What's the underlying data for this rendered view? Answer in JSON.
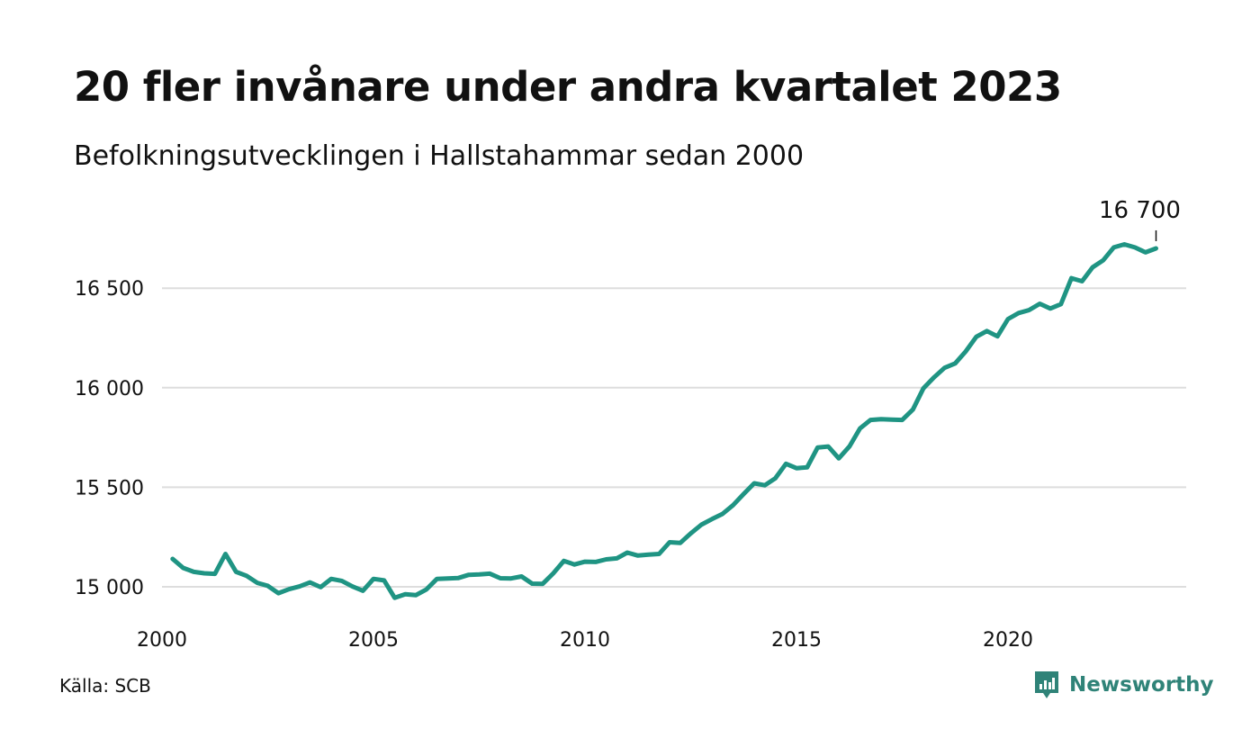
{
  "header": {
    "title": "20 fler invånare under andra kvartalet 2023",
    "subtitle": "Befolkningsutvecklingen i Hallstahammar sedan 2000"
  },
  "footer": {
    "source": "Källa: SCB",
    "brand": "Newsworthy",
    "brand_icon": "bar-chart-speech-bubble-icon"
  },
  "colors": {
    "line": "#1f9483",
    "grid": "#dddddd",
    "brand": "#2f8378"
  },
  "chart_data": {
    "type": "line",
    "title": "20 fler invånare under andra kvartalet 2023",
    "subtitle": "Befolkningsutvecklingen i Hallstahammar sedan 2000",
    "xlabel": "",
    "ylabel": "",
    "xlim": [
      2000,
      2024
    ],
    "ylim": [
      15000,
      16800
    ],
    "grid": true,
    "x_ticks": [
      2000,
      2005,
      2010,
      2015,
      2020
    ],
    "x_tick_labels": [
      "2000",
      "2005",
      "2010",
      "2015",
      "2020"
    ],
    "y_ticks": [
      15000,
      15500,
      16000,
      16500
    ],
    "y_tick_labels": [
      "15 000",
      "15 500",
      "16 000",
      "16 500"
    ],
    "end_label": "16 700",
    "series": [
      {
        "x": [
          2000.25,
          2000.5,
          2000.75,
          2001,
          2001.25,
          2001.5,
          2001.75,
          2002,
          2002.25,
          2002.5,
          2002.75,
          2003,
          2003.25,
          2003.5,
          2003.75,
          2004,
          2004.25,
          2004.5,
          2004.75,
          2005,
          2005.25,
          2005.5,
          2005.75,
          2006,
          2006.25,
          2006.5,
          2006.75,
          2007,
          2007.25,
          2007.5,
          2007.75,
          2008,
          2008.25,
          2008.5,
          2008.75,
          2009,
          2009.25,
          2009.5,
          2009.75,
          2010,
          2010.25,
          2010.5,
          2010.75,
          2011,
          2011.25,
          2011.5,
          2011.75,
          2012,
          2012.25,
          2012.5,
          2012.75,
          2013,
          2013.25,
          2013.5,
          2013.75,
          2014,
          2014.25,
          2014.5,
          2014.75,
          2015,
          2015.25,
          2015.5,
          2015.75,
          2016,
          2016.25,
          2016.5,
          2016.75,
          2017,
          2017.25,
          2017.5,
          2017.75,
          2018,
          2018.25,
          2018.5,
          2018.75,
          2019,
          2019.25,
          2019.5,
          2019.75,
          2020,
          2020.25,
          2020.5,
          2020.75,
          2021,
          2021.25,
          2021.5,
          2021.75,
          2022,
          2022.25,
          2022.5,
          2022.75,
          2023,
          2023.25,
          2023.5
        ],
        "values": [
          15140,
          15095,
          15075,
          15068,
          15065,
          15165,
          15075,
          15055,
          15020,
          15005,
          14968,
          14988,
          15002,
          15022,
          14998,
          15040,
          15030,
          15002,
          14980,
          15040,
          15032,
          14945,
          14963,
          14958,
          14987,
          15040,
          15042,
          15044,
          15060,
          15062,
          15066,
          15043,
          15042,
          15052,
          15016,
          15015,
          15068,
          15130,
          15112,
          15126,
          15125,
          15138,
          15143,
          15172,
          15157,
          15162,
          15165,
          15224,
          15220,
          15268,
          15312,
          15340,
          15366,
          15410,
          15466,
          15520,
          15510,
          15545,
          15618,
          15596,
          15600,
          15700,
          15705,
          15645,
          15705,
          15795,
          15838,
          15842,
          15840,
          15838,
          15890,
          15997,
          16052,
          16100,
          16122,
          16182,
          16256,
          16285,
          16258,
          16345,
          16375,
          16390,
          16422,
          16398,
          16420,
          16550,
          16535,
          16605,
          16640,
          16705,
          16720,
          16705,
          16680,
          16700
        ]
      }
    ]
  }
}
